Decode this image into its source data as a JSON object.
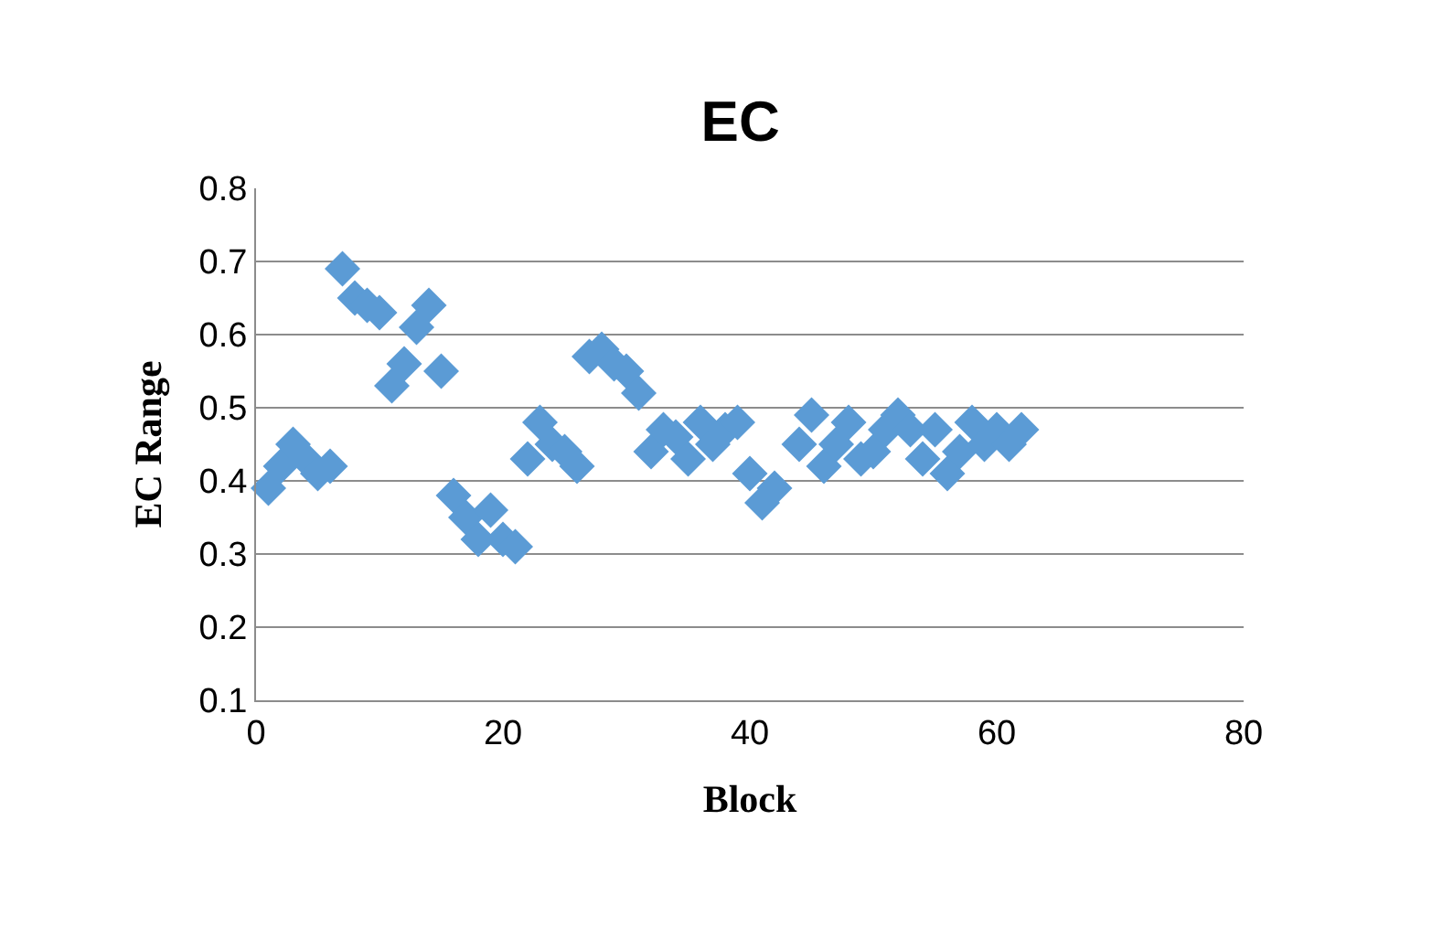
{
  "chart_data": {
    "type": "scatter",
    "title": "EC",
    "xlabel": "Block",
    "ylabel": "EC Range",
    "marker": "diamond",
    "grid": "y",
    "x": [
      1,
      2,
      3,
      4,
      5,
      6,
      7,
      8,
      9,
      10,
      11,
      12,
      13,
      14,
      15,
      16,
      17,
      18,
      19,
      20,
      21,
      22,
      23,
      24,
      25,
      26,
      27,
      28,
      29,
      30,
      31,
      32,
      33,
      34,
      35,
      36,
      37,
      38,
      39,
      40,
      41,
      42,
      44,
      45,
      46,
      47,
      48,
      49,
      50,
      51,
      52,
      53,
      54,
      55,
      56,
      57,
      58,
      59,
      60,
      61,
      62
    ],
    "series": [
      {
        "color": "#5b9bd5",
        "values": [
          0.39,
          0.42,
          0.45,
          0.43,
          0.41,
          0.42,
          0.69,
          0.65,
          0.64,
          0.63,
          0.53,
          0.56,
          0.61,
          0.64,
          0.55,
          0.38,
          0.35,
          0.32,
          0.36,
          0.32,
          0.31,
          0.43,
          0.48,
          0.45,
          0.44,
          0.42,
          0.57,
          0.58,
          0.56,
          0.55,
          0.52,
          0.44,
          0.47,
          0.46,
          0.43,
          0.48,
          0.45,
          0.47,
          0.48,
          0.41,
          0.37,
          0.39,
          0.45,
          0.49,
          0.42,
          0.45,
          0.48,
          0.43,
          0.44,
          0.47,
          0.49,
          0.47,
          0.43,
          0.47,
          0.41,
          0.44,
          0.48,
          0.45,
          0.47,
          0.45,
          0.47
        ]
      }
    ],
    "xlim": [
      0,
      80
    ],
    "xticks": [
      0,
      20,
      40,
      60,
      80
    ],
    "ylim": [
      0.1,
      0.8
    ],
    "yticks": [
      0.1,
      0.2,
      0.3,
      0.4,
      0.5,
      0.6,
      0.7,
      0.8
    ]
  }
}
